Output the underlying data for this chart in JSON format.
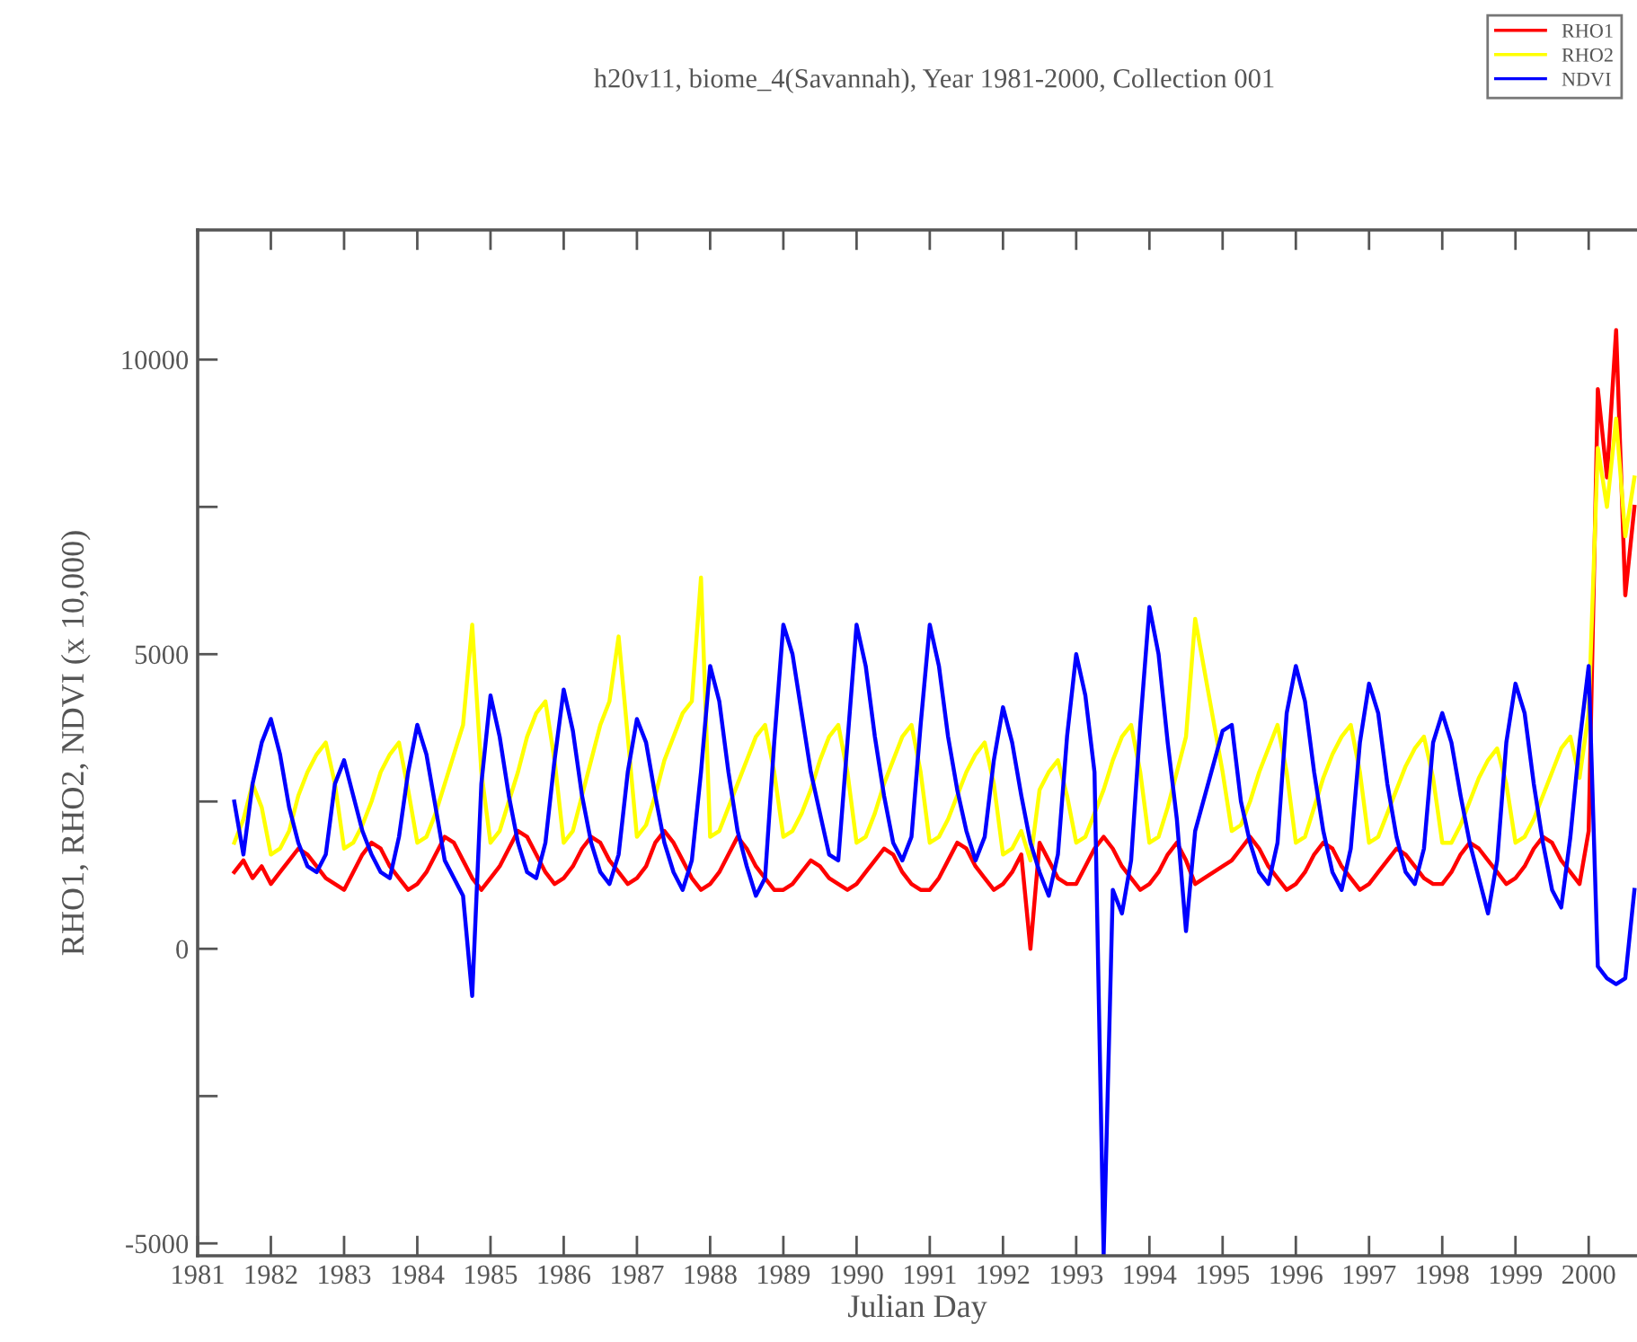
{
  "chart_data": {
    "type": "line",
    "title": "h20v11, biome_4(Savannah), Year 1981-2000, Collection 001",
    "xlabel": "Julian Day",
    "ylabel": "RHO1, RHO2, NDVI (x 10,000)",
    "xlim": [
      1981,
      2000.66
    ],
    "xticks": [
      1981,
      1982,
      1983,
      1984,
      1985,
      1986,
      1987,
      1988,
      1989,
      1990,
      1991,
      1992,
      1993,
      1994,
      1995,
      1996,
      1997,
      1998,
      1999,
      2000
    ],
    "ylim": [
      -5210,
      12200
    ],
    "yticks": [
      -5000,
      {
        "value": -2500,
        "label": null
      },
      0,
      {
        "value": 2500,
        "label": null
      },
      5000,
      {
        "value": 7500,
        "label": null
      },
      10000
    ],
    "legend": "top right",
    "grid": false,
    "marker": "none",
    "line_style": "solid",
    "x": [
      1981.5,
      1981.625,
      1981.75,
      1981.875,
      1982,
      1982.125,
      1982.25,
      1982.375,
      1982.5,
      1982.625,
      1982.75,
      1982.875,
      1983,
      1983.125,
      1983.25,
      1983.375,
      1983.5,
      1983.625,
      1983.75,
      1983.875,
      1984,
      1984.125,
      1984.25,
      1984.375,
      1984.5,
      1984.625,
      1984.75,
      1984.875,
      1985,
      1985.125,
      1985.25,
      1985.375,
      1985.5,
      1985.625,
      1985.75,
      1985.875,
      1986,
      1986.125,
      1986.25,
      1986.375,
      1986.5,
      1986.625,
      1986.75,
      1986.875,
      1987,
      1987.125,
      1987.25,
      1987.375,
      1987.5,
      1987.625,
      1987.75,
      1987.875,
      1988,
      1988.125,
      1988.25,
      1988.375,
      1988.5,
      1988.625,
      1988.75,
      1988.875,
      1989,
      1989.125,
      1989.25,
      1989.375,
      1989.5,
      1989.625,
      1989.75,
      1989.875,
      1990,
      1990.125,
      1990.25,
      1990.375,
      1990.5,
      1990.625,
      1990.75,
      1990.875,
      1991,
      1991.125,
      1991.25,
      1991.375,
      1991.5,
      1991.625,
      1991.75,
      1991.875,
      1992,
      1992.125,
      1992.25,
      1992.375,
      1992.5,
      1992.625,
      1992.75,
      1992.875,
      1993,
      1993.125,
      1993.25,
      1993.375,
      1993.5,
      1993.625,
      1993.75,
      1993.875,
      1994,
      1994.125,
      1994.25,
      1994.375,
      1994.5,
      1994.625,
      1995,
      1995.125,
      1995.25,
      1995.375,
      1995.5,
      1995.625,
      1995.75,
      1995.875,
      1996,
      1996.125,
      1996.25,
      1996.375,
      1996.5,
      1996.625,
      1996.75,
      1996.875,
      1997,
      1997.125,
      1997.25,
      1997.375,
      1997.5,
      1997.625,
      1997.75,
      1997.875,
      1998,
      1998.125,
      1998.25,
      1998.375,
      1998.5,
      1998.625,
      1998.75,
      1998.875,
      1999,
      1999.125,
      1999.25,
      1999.375,
      1999.5,
      1999.625,
      1999.75,
      1999.875,
      2000,
      2000.125,
      2000.25,
      2000.375,
      2000.5,
      2000.625
    ],
    "series": [
      {
        "name": "RHO1",
        "color": "#ff0000",
        "values": [
          1300,
          1500,
          1200,
          1400,
          1100,
          1300,
          1500,
          1700,
          1600,
          1400,
          1200,
          1100,
          1000,
          1300,
          1600,
          1800,
          1700,
          1400,
          1200,
          1000,
          1100,
          1300,
          1600,
          1900,
          1800,
          1500,
          1200,
          1000,
          1200,
          1400,
          1700,
          2000,
          1900,
          1600,
          1300,
          1100,
          1200,
          1400,
          1700,
          1900,
          1800,
          1500,
          1300,
          1100,
          1200,
          1400,
          1800,
          2000,
          1800,
          1500,
          1200,
          1000,
          1100,
          1300,
          1600,
          1900,
          1700,
          1400,
          1200,
          1000,
          1000,
          1100,
          1300,
          1500,
          1400,
          1200,
          1100,
          1000,
          1100,
          1300,
          1500,
          1700,
          1600,
          1300,
          1100,
          1000,
          1000,
          1200,
          1500,
          1800,
          1700,
          1400,
          1200,
          1000,
          1100,
          1300,
          1600,
          0,
          1800,
          1500,
          1200,
          1100,
          1100,
          1400,
          1700,
          1900,
          1700,
          1400,
          1200,
          1000,
          1100,
          1300,
          1600,
          1800,
          1500,
          1100,
          1400,
          1500,
          1700,
          1900,
          1700,
          1400,
          1200,
          1000,
          1100,
          1300,
          1600,
          1800,
          1700,
          1400,
          1200,
          1000,
          1100,
          1300,
          1500,
          1700,
          1600,
          1400,
          1200,
          1100,
          1100,
          1300,
          1600,
          1800,
          1700,
          1500,
          1300,
          1100,
          1200,
          1400,
          1700,
          1900,
          1800,
          1500,
          1300,
          1100,
          2000,
          9500,
          8000,
          10500,
          6000,
          7500
        ]
      },
      {
        "name": "RHO2",
        "color": "#ffff00",
        "values": [
          1800,
          2200,
          2800,
          2400,
          1600,
          1700,
          2000,
          2600,
          3000,
          3300,
          3500,
          2800,
          1700,
          1800,
          2100,
          2500,
          3000,
          3300,
          3500,
          2700,
          1800,
          1900,
          2300,
          2800,
          3300,
          3800,
          5500,
          3000,
          1800,
          2000,
          2500,
          3000,
          3600,
          4000,
          4200,
          3200,
          1800,
          2000,
          2600,
          3200,
          3800,
          4200,
          5300,
          3600,
          1900,
          2100,
          2600,
          3200,
          3600,
          4000,
          4200,
          6300,
          1900,
          2000,
          2400,
          2800,
          3200,
          3600,
          3800,
          3000,
          1900,
          2000,
          2300,
          2700,
          3200,
          3600,
          3800,
          3000,
          1800,
          1900,
          2300,
          2800,
          3200,
          3600,
          3800,
          3000,
          1800,
          1900,
          2200,
          2600,
          3000,
          3300,
          3500,
          2800,
          1600,
          1700,
          2000,
          1500,
          2700,
          3000,
          3200,
          2600,
          1800,
          1900,
          2300,
          2700,
          3200,
          3600,
          3800,
          3000,
          1800,
          1900,
          2400,
          3000,
          3600,
          5600,
          3000,
          2000,
          2100,
          2500,
          3000,
          3400,
          3800,
          3000,
          1800,
          1900,
          2400,
          2900,
          3300,
          3600,
          3800,
          3000,
          1800,
          1900,
          2300,
          2700,
          3100,
          3400,
          3600,
          2900,
          1800,
          1800,
          2100,
          2500,
          2900,
          3200,
          3400,
          2800,
          1800,
          1900,
          2200,
          2600,
          3000,
          3400,
          3600,
          2900,
          4000,
          8500,
          7500,
          9000,
          7000,
          8000
        ]
      },
      {
        "name": "NDVI",
        "color": "#0000ff",
        "values": [
          2500,
          1600,
          2800,
          3500,
          3900,
          3300,
          2400,
          1800,
          1400,
          1300,
          1600,
          2800,
          3200,
          2600,
          2000,
          1600,
          1300,
          1200,
          1900,
          3000,
          3800,
          3300,
          2400,
          1500,
          1200,
          900,
          -800,
          2800,
          4300,
          3600,
          2600,
          1800,
          1300,
          1200,
          1800,
          3200,
          4400,
          3700,
          2600,
          1800,
          1300,
          1100,
          1600,
          3000,
          3900,
          3500,
          2600,
          1800,
          1300,
          1000,
          1500,
          3000,
          4800,
          4200,
          3000,
          2000,
          1400,
          900,
          1200,
          3500,
          5500,
          5000,
          4000,
          3000,
          2300,
          1600,
          1500,
          3500,
          5500,
          4800,
          3600,
          2600,
          1800,
          1500,
          1900,
          3800,
          5500,
          4800,
          3600,
          2700,
          2000,
          1500,
          1900,
          3200,
          4100,
          3500,
          2600,
          1800,
          1300,
          900,
          1600,
          3600,
          5000,
          4300,
          3000,
          -5200,
          1000,
          600,
          1500,
          3800,
          5800,
          5000,
          3500,
          2200,
          300,
          2000,
          3700,
          3800,
          2500,
          1800,
          1300,
          1100,
          1800,
          4000,
          4800,
          4200,
          3000,
          2000,
          1300,
          1000,
          1700,
          3500,
          4500,
          4000,
          2800,
          1900,
          1300,
          1100,
          1700,
          3500,
          4000,
          3500,
          2600,
          1800,
          1200,
          600,
          1500,
          3500,
          4500,
          4000,
          2800,
          1800,
          1000,
          700,
          1900,
          3500,
          4800,
          -300,
          -500,
          -600,
          -500,
          1000
        ]
      }
    ]
  }
}
